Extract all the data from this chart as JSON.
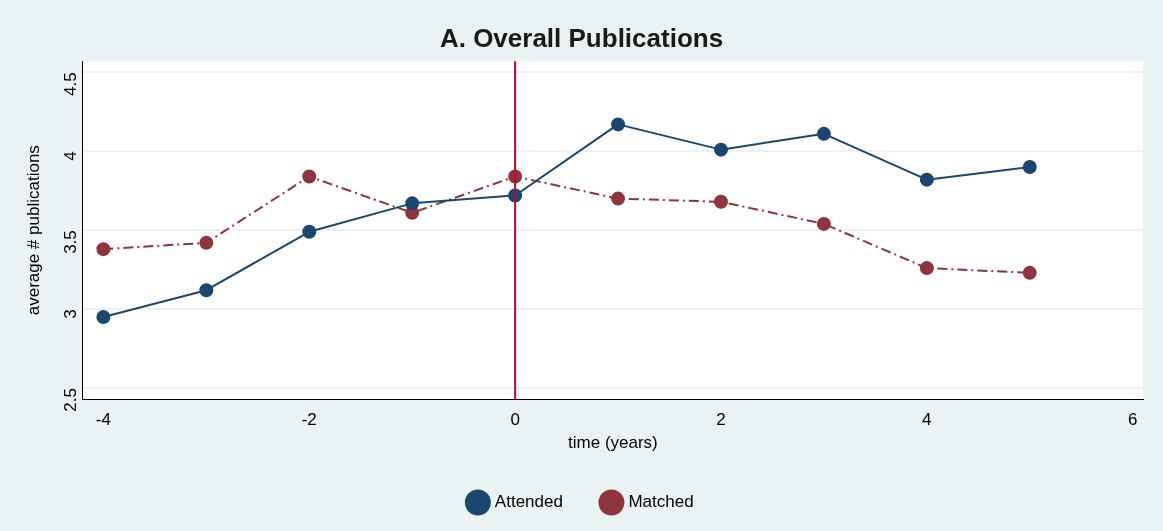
{
  "chart_data": {
    "type": "line",
    "title": "A. Overall Publications",
    "xlabel": "time (years)",
    "ylabel": "average # publications",
    "x": [
      -4,
      -3,
      -2,
      -1,
      0,
      1,
      2,
      3,
      4,
      5
    ],
    "series": [
      {
        "name": "Attended",
        "color": "#1a476f",
        "line_style": "solid",
        "values": [
          2.95,
          3.12,
          3.49,
          3.67,
          3.72,
          4.17,
          4.01,
          4.11,
          3.82,
          3.9
        ]
      },
      {
        "name": "Matched",
        "color": "#90353b",
        "line_style": "dashed",
        "values": [
          3.38,
          3.42,
          3.84,
          3.61,
          3.84,
          3.7,
          3.68,
          3.54,
          3.26,
          3.23
        ]
      }
    ],
    "xlim": [
      -4.2,
      6.1
    ],
    "xticks": [
      -4,
      -2,
      0,
      2,
      4,
      6
    ],
    "ylim": [
      2.43,
      4.57
    ],
    "yticks": [
      2.5,
      3,
      3.5,
      4,
      4.5
    ],
    "ref_lines": [
      {
        "axis": "x",
        "value": 0,
        "color": "#c10534"
      }
    ],
    "grid": "y",
    "legend": "bottom",
    "marker": "circle"
  }
}
